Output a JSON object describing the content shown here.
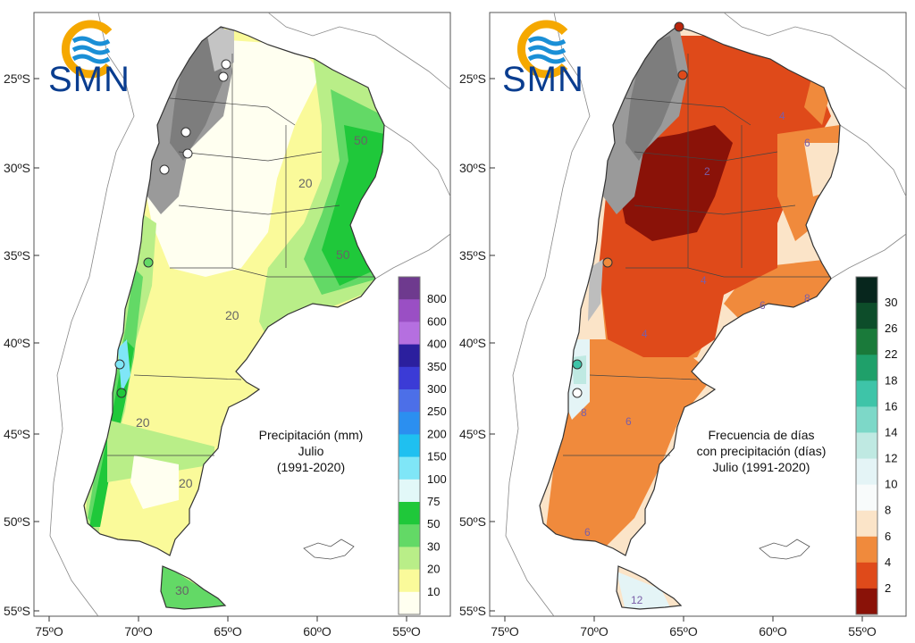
{
  "logo": {
    "text": "SMN",
    "color": "#0a3d8f",
    "sun_color": "#f5a800"
  },
  "axes": {
    "lat_ticks": [
      "25ºS",
      "30ºS",
      "35ºS",
      "40ºS",
      "45ºS",
      "50ºS",
      "55ºS"
    ],
    "lon_ticks": [
      "75ºO",
      "70ºO",
      "65ºO",
      "60ºO",
      "55ºO"
    ]
  },
  "left_map": {
    "title_lines": [
      "Precipitación (mm)",
      "Julio",
      "(1991-2020)"
    ],
    "legend": {
      "labels": [
        "800",
        "600",
        "400",
        "350",
        "300",
        "250",
        "200",
        "150",
        "100",
        "75",
        "50",
        "30",
        "20",
        "10"
      ],
      "colors": [
        "#6e3a8e",
        "#9a4fc4",
        "#b56fe0",
        "#2b1f9e",
        "#3b3bd6",
        "#4c6fe8",
        "#2b8ff0",
        "#1fc0f0",
        "#7fe6f7",
        "#e2f8f8",
        "#1fc83a",
        "#63d966",
        "#b9ee88",
        "#fafa9a",
        "#fffff0"
      ]
    },
    "contour_labels": [
      "50",
      "20",
      "50",
      "20",
      "20",
      "20",
      "30"
    ]
  },
  "right_map": {
    "title_lines": [
      "Frecuencia de días",
      "con precipitación (días)",
      "Julio (1991-2020)"
    ],
    "legend": {
      "labels": [
        "30",
        "26",
        "22",
        "18",
        "16",
        "14",
        "12",
        "10",
        "8",
        "6",
        "4",
        "2"
      ],
      "colors": [
        "#07261d",
        "#0d4d2a",
        "#1a7a3a",
        "#1fa06a",
        "#3ec4a8",
        "#7dd8c8",
        "#bfe9e2",
        "#e4f4f6",
        "#f8fbfb",
        "#fbe4c8",
        "#f08a3c",
        "#df4a1a",
        "#8a1208"
      ]
    },
    "contour_labels": [
      "2",
      "4",
      "6",
      "4",
      "6",
      "8",
      "4",
      "6",
      "8",
      "6",
      "12"
    ]
  }
}
